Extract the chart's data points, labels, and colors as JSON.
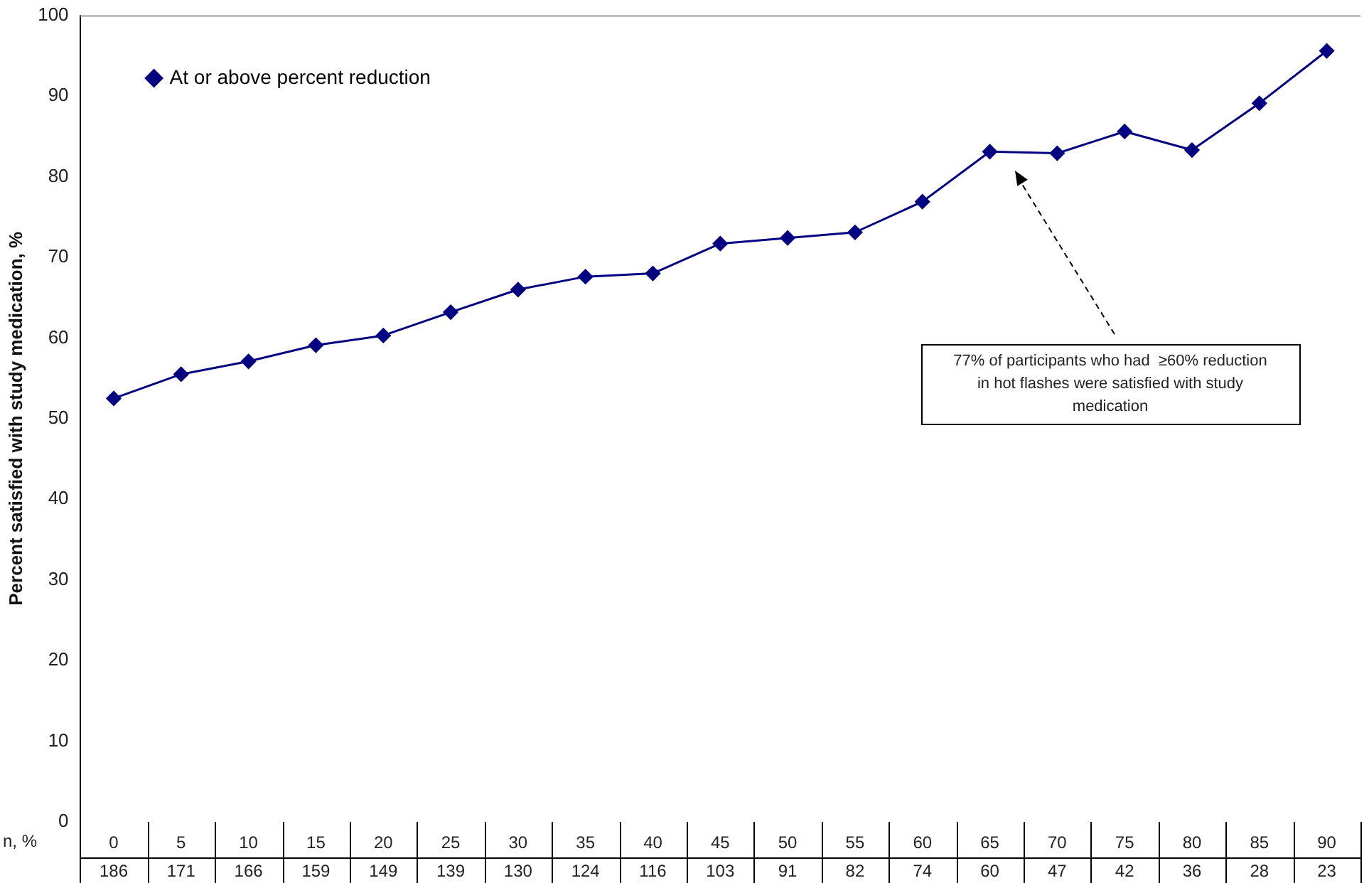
{
  "chart_data": {
    "type": "line",
    "ylabel": "Percent satisfied with study medication, %",
    "xlabel": "n, %",
    "categories": [
      "0",
      "5",
      "10",
      "15",
      "20",
      "25",
      "30",
      "35",
      "40",
      "45",
      "50",
      "55",
      "60",
      "65",
      "70",
      "75",
      "80",
      "85",
      "90"
    ],
    "series": [
      {
        "name": "At or above percent reduction",
        "color": "#000080",
        "values": [
          52.5,
          55.5,
          57.1,
          59.1,
          60.3,
          63.2,
          66.0,
          67.6,
          68.0,
          71.7,
          72.4,
          73.1,
          76.9,
          83.1,
          82.9,
          85.6,
          83.3,
          89.1,
          95.6
        ]
      }
    ],
    "ylim": [
      0,
      100
    ],
    "yticks": [
      0,
      10,
      20,
      30,
      40,
      50,
      60,
      70,
      80,
      90,
      100
    ],
    "grid": false,
    "legend": "top left",
    "marker": "diamond",
    "line_style": "solid",
    "annotations": [
      "77% of participants who had  ≥60% reduction in hot flashes were satisfied with study medication",
      "186",
      "171",
      "166",
      "159",
      "149",
      "139",
      "130",
      "124",
      "116",
      "103",
      "91",
      "82",
      "74",
      "60",
      "47",
      "42",
      "36",
      "28",
      "23"
    ]
  }
}
